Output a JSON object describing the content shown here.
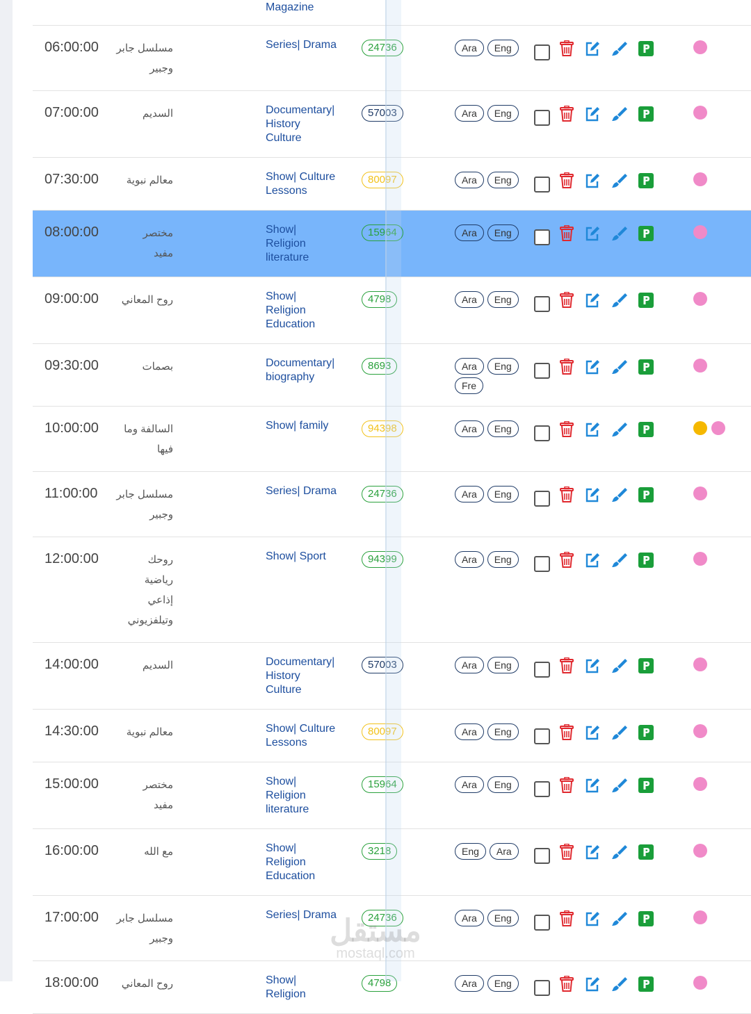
{
  "top_row": {
    "genre": "Magazine"
  },
  "rows": [
    {
      "time": "06:00:00",
      "title_lines": [
        "مسلسل جابر",
        "وجبير"
      ],
      "genre_lines": [
        "Series| Drama"
      ],
      "badge": {
        "text": "24736",
        "color": "green"
      },
      "langs": [
        "Ara",
        "Eng"
      ],
      "dots": [
        "pink"
      ]
    },
    {
      "time": "07:00:00",
      "title_lines": [
        "السديم"
      ],
      "genre_lines": [
        "Documentary|",
        "History",
        "Culture"
      ],
      "badge": {
        "text": "57003",
        "color": "navy"
      },
      "langs": [
        "Ara",
        "Eng"
      ],
      "dots": [
        "pink"
      ]
    },
    {
      "time": "07:30:00",
      "title_lines": [
        "معالم نبوية"
      ],
      "genre_lines": [
        "Show| Culture",
        "Lessons"
      ],
      "badge": {
        "text": "80097",
        "color": "yellow"
      },
      "langs": [
        "Ara",
        "Eng"
      ],
      "dots": [
        "pink"
      ]
    },
    {
      "time": "08:00:00",
      "title_lines": [
        "مختصر",
        "مفيد"
      ],
      "genre_lines": [
        "Show|",
        "Religion",
        "literature"
      ],
      "badge": {
        "text": "15964",
        "color": "green"
      },
      "langs": [
        "Ara",
        "Eng"
      ],
      "dots": [
        "pink"
      ],
      "selected": true
    },
    {
      "time": "09:00:00",
      "title_lines": [
        "روح المعاني"
      ],
      "genre_lines": [
        "Show|",
        "Religion",
        "Education"
      ],
      "badge": {
        "text": "4798",
        "color": "green"
      },
      "langs": [
        "Ara",
        "Eng"
      ],
      "dots": [
        "pink"
      ]
    },
    {
      "time": "09:30:00",
      "title_lines": [
        "بصمات"
      ],
      "genre_lines": [
        "Documentary|",
        "biography"
      ],
      "badge": {
        "text": "8693",
        "color": "green"
      },
      "langs": [
        "Ara",
        "Eng",
        "Fre"
      ],
      "dots": [
        "pink"
      ]
    },
    {
      "time": "10:00:00",
      "title_lines": [
        "السالفة وما",
        "فيها"
      ],
      "genre_lines": [
        "Show| family"
      ],
      "badge": {
        "text": "94398",
        "color": "yellow"
      },
      "langs": [
        "Ara",
        "Eng"
      ],
      "dots": [
        "yellow",
        "pink"
      ]
    },
    {
      "time": "11:00:00",
      "title_lines": [
        "مسلسل جابر",
        "وجبير"
      ],
      "genre_lines": [
        "Series| Drama"
      ],
      "badge": {
        "text": "24736",
        "color": "green"
      },
      "langs": [
        "Ara",
        "Eng"
      ],
      "dots": [
        "pink"
      ]
    },
    {
      "time": "12:00:00",
      "title_lines": [
        "روحك",
        "رياضية",
        "إذاعي",
        "وتيلفزيوني"
      ],
      "genre_lines": [
        "Show| Sport"
      ],
      "badge": {
        "text": "94399",
        "color": "green"
      },
      "langs": [
        "Ara",
        "Eng"
      ],
      "dots": [
        "pink"
      ]
    },
    {
      "time": "14:00:00",
      "title_lines": [
        "السديم"
      ],
      "genre_lines": [
        "Documentary|",
        "History",
        "Culture"
      ],
      "badge": {
        "text": "57003",
        "color": "navy"
      },
      "langs": [
        "Ara",
        "Eng"
      ],
      "dots": [
        "pink"
      ]
    },
    {
      "time": "14:30:00",
      "title_lines": [
        "معالم نبوية"
      ],
      "genre_lines": [
        "Show| Culture",
        "Lessons"
      ],
      "badge": {
        "text": "80097",
        "color": "yellow"
      },
      "langs": [
        "Ara",
        "Eng"
      ],
      "dots": [
        "pink"
      ]
    },
    {
      "time": "15:00:00",
      "title_lines": [
        "مختصر",
        "مفيد"
      ],
      "genre_lines": [
        "Show|",
        "Religion",
        "literature"
      ],
      "badge": {
        "text": "15964",
        "color": "green"
      },
      "langs": [
        "Ara",
        "Eng"
      ],
      "dots": [
        "pink"
      ]
    },
    {
      "time": "16:00:00",
      "title_lines": [
        "مع الله"
      ],
      "genre_lines": [
        "Show|",
        "Religion",
        "Education"
      ],
      "badge": {
        "text": "3218",
        "color": "green"
      },
      "langs": [
        "Eng",
        "Ara"
      ],
      "dots": [
        "pink"
      ]
    },
    {
      "time": "17:00:00",
      "title_lines": [
        "مسلسل جابر",
        "وجبير"
      ],
      "genre_lines": [
        "Series| Drama"
      ],
      "badge": {
        "text": "24736",
        "color": "green"
      },
      "langs": [
        "Ara",
        "Eng"
      ],
      "dots": [
        "pink"
      ]
    },
    {
      "time": "18:00:00",
      "title_lines": [
        "روح المعاني"
      ],
      "genre_lines": [
        "Show|",
        "Religion"
      ],
      "badge": {
        "text": "4798",
        "color": "green"
      },
      "langs": [
        "Ara",
        "Eng"
      ],
      "dots": [
        "pink"
      ]
    }
  ],
  "watermark": {
    "arabic": "مستقل",
    "latin": "mostaql.com"
  }
}
